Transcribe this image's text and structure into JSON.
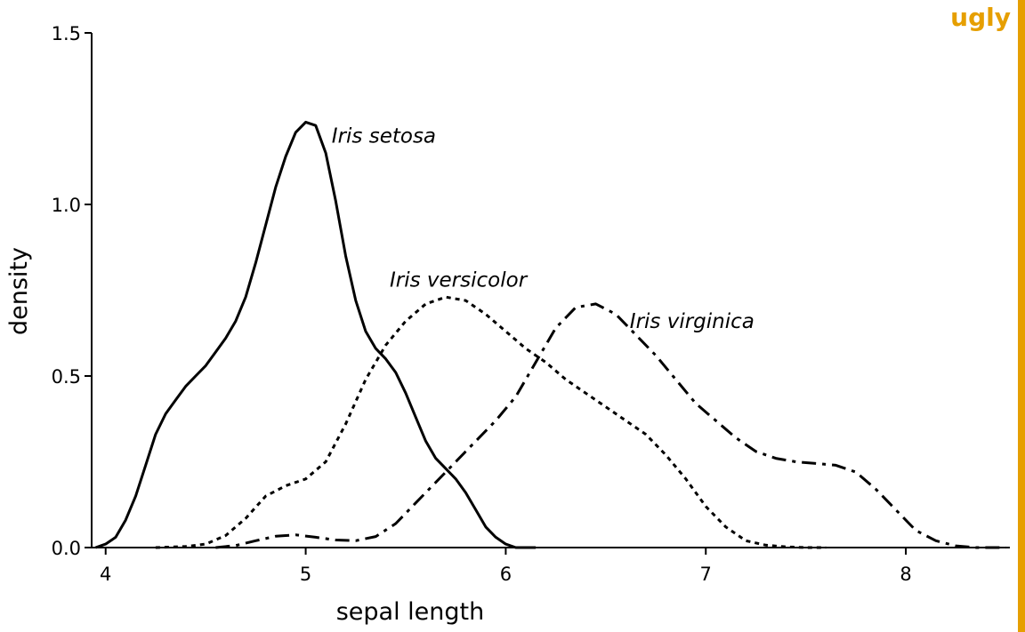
{
  "badge": {
    "text": "ugly",
    "color": "#E69F00"
  },
  "chart_data": {
    "type": "line",
    "title": "",
    "xlabel": "sepal length",
    "ylabel": "density",
    "xlim": [
      3.93,
      8.52
    ],
    "ylim": [
      0,
      1.5
    ],
    "x_ticks": [
      4,
      5,
      6,
      7,
      8
    ],
    "x_tick_labels": [
      "4",
      "5",
      "6",
      "7",
      "8"
    ],
    "y_ticks": [
      0,
      0.5,
      1.0,
      1.5
    ],
    "y_tick_labels": [
      "0.0",
      "0.5",
      "1.0",
      "1.5"
    ],
    "grid": false,
    "legend": "none (series labeled directly)",
    "series": [
      {
        "name": "Iris setosa",
        "line_style": "solid",
        "label_at": [
          5.13,
          1.18
        ],
        "points": [
          [
            3.95,
            0.0
          ],
          [
            4.0,
            0.01
          ],
          [
            4.05,
            0.03
          ],
          [
            4.1,
            0.08
          ],
          [
            4.15,
            0.15
          ],
          [
            4.2,
            0.24
          ],
          [
            4.25,
            0.33
          ],
          [
            4.3,
            0.39
          ],
          [
            4.35,
            0.43
          ],
          [
            4.4,
            0.47
          ],
          [
            4.45,
            0.5
          ],
          [
            4.5,
            0.53
          ],
          [
            4.55,
            0.57
          ],
          [
            4.6,
            0.61
          ],
          [
            4.65,
            0.66
          ],
          [
            4.7,
            0.73
          ],
          [
            4.75,
            0.83
          ],
          [
            4.8,
            0.94
          ],
          [
            4.85,
            1.05
          ],
          [
            4.9,
            1.14
          ],
          [
            4.95,
            1.21
          ],
          [
            5.0,
            1.24
          ],
          [
            5.05,
            1.23
          ],
          [
            5.1,
            1.15
          ],
          [
            5.15,
            1.01
          ],
          [
            5.2,
            0.85
          ],
          [
            5.25,
            0.72
          ],
          [
            5.3,
            0.63
          ],
          [
            5.35,
            0.58
          ],
          [
            5.4,
            0.55
          ],
          [
            5.45,
            0.51
          ],
          [
            5.5,
            0.45
          ],
          [
            5.55,
            0.38
          ],
          [
            5.6,
            0.31
          ],
          [
            5.65,
            0.26
          ],
          [
            5.7,
            0.23
          ],
          [
            5.75,
            0.2
          ],
          [
            5.8,
            0.16
          ],
          [
            5.85,
            0.11
          ],
          [
            5.9,
            0.06
          ],
          [
            5.95,
            0.03
          ],
          [
            6.0,
            0.01
          ],
          [
            6.05,
            0.0
          ],
          [
            6.15,
            0.0
          ]
        ]
      },
      {
        "name": "Iris versicolor",
        "line_style": "dotted",
        "label_at": [
          5.42,
          0.76
        ],
        "points": [
          [
            4.25,
            0.0
          ],
          [
            4.4,
            0.003
          ],
          [
            4.5,
            0.01
          ],
          [
            4.6,
            0.035
          ],
          [
            4.7,
            0.085
          ],
          [
            4.8,
            0.15
          ],
          [
            4.9,
            0.18
          ],
          [
            5.0,
            0.2
          ],
          [
            5.1,
            0.25
          ],
          [
            5.2,
            0.36
          ],
          [
            5.3,
            0.49
          ],
          [
            5.4,
            0.59
          ],
          [
            5.5,
            0.66
          ],
          [
            5.6,
            0.71
          ],
          [
            5.7,
            0.73
          ],
          [
            5.8,
            0.72
          ],
          [
            5.9,
            0.68
          ],
          [
            6.0,
            0.63
          ],
          [
            6.1,
            0.58
          ],
          [
            6.2,
            0.54
          ],
          [
            6.3,
            0.49
          ],
          [
            6.4,
            0.45
          ],
          [
            6.5,
            0.41
          ],
          [
            6.6,
            0.37
          ],
          [
            6.7,
            0.33
          ],
          [
            6.8,
            0.27
          ],
          [
            6.9,
            0.2
          ],
          [
            7.0,
            0.12
          ],
          [
            7.1,
            0.06
          ],
          [
            7.2,
            0.02
          ],
          [
            7.3,
            0.007
          ],
          [
            7.4,
            0.002
          ],
          [
            7.5,
            0.0
          ],
          [
            7.6,
            0.0
          ]
        ]
      },
      {
        "name": "Iris virginica",
        "line_style": "dashdot",
        "label_at": [
          6.62,
          0.64
        ],
        "points": [
          [
            4.55,
            0.0
          ],
          [
            4.65,
            0.006
          ],
          [
            4.75,
            0.02
          ],
          [
            4.85,
            0.033
          ],
          [
            4.95,
            0.037
          ],
          [
            5.05,
            0.03
          ],
          [
            5.15,
            0.022
          ],
          [
            5.25,
            0.02
          ],
          [
            5.35,
            0.032
          ],
          [
            5.45,
            0.07
          ],
          [
            5.55,
            0.13
          ],
          [
            5.65,
            0.19
          ],
          [
            5.75,
            0.25
          ],
          [
            5.85,
            0.31
          ],
          [
            5.95,
            0.37
          ],
          [
            6.05,
            0.44
          ],
          [
            6.15,
            0.54
          ],
          [
            6.25,
            0.64
          ],
          [
            6.35,
            0.7
          ],
          [
            6.45,
            0.71
          ],
          [
            6.55,
            0.68
          ],
          [
            6.65,
            0.62
          ],
          [
            6.75,
            0.56
          ],
          [
            6.85,
            0.49
          ],
          [
            6.95,
            0.42
          ],
          [
            7.05,
            0.37
          ],
          [
            7.15,
            0.32
          ],
          [
            7.25,
            0.28
          ],
          [
            7.35,
            0.26
          ],
          [
            7.45,
            0.25
          ],
          [
            7.55,
            0.245
          ],
          [
            7.65,
            0.24
          ],
          [
            7.75,
            0.22
          ],
          [
            7.85,
            0.17
          ],
          [
            7.95,
            0.11
          ],
          [
            8.05,
            0.05
          ],
          [
            8.15,
            0.02
          ],
          [
            8.25,
            0.005
          ],
          [
            8.35,
            0.0
          ],
          [
            8.5,
            0.0
          ]
        ]
      }
    ]
  }
}
